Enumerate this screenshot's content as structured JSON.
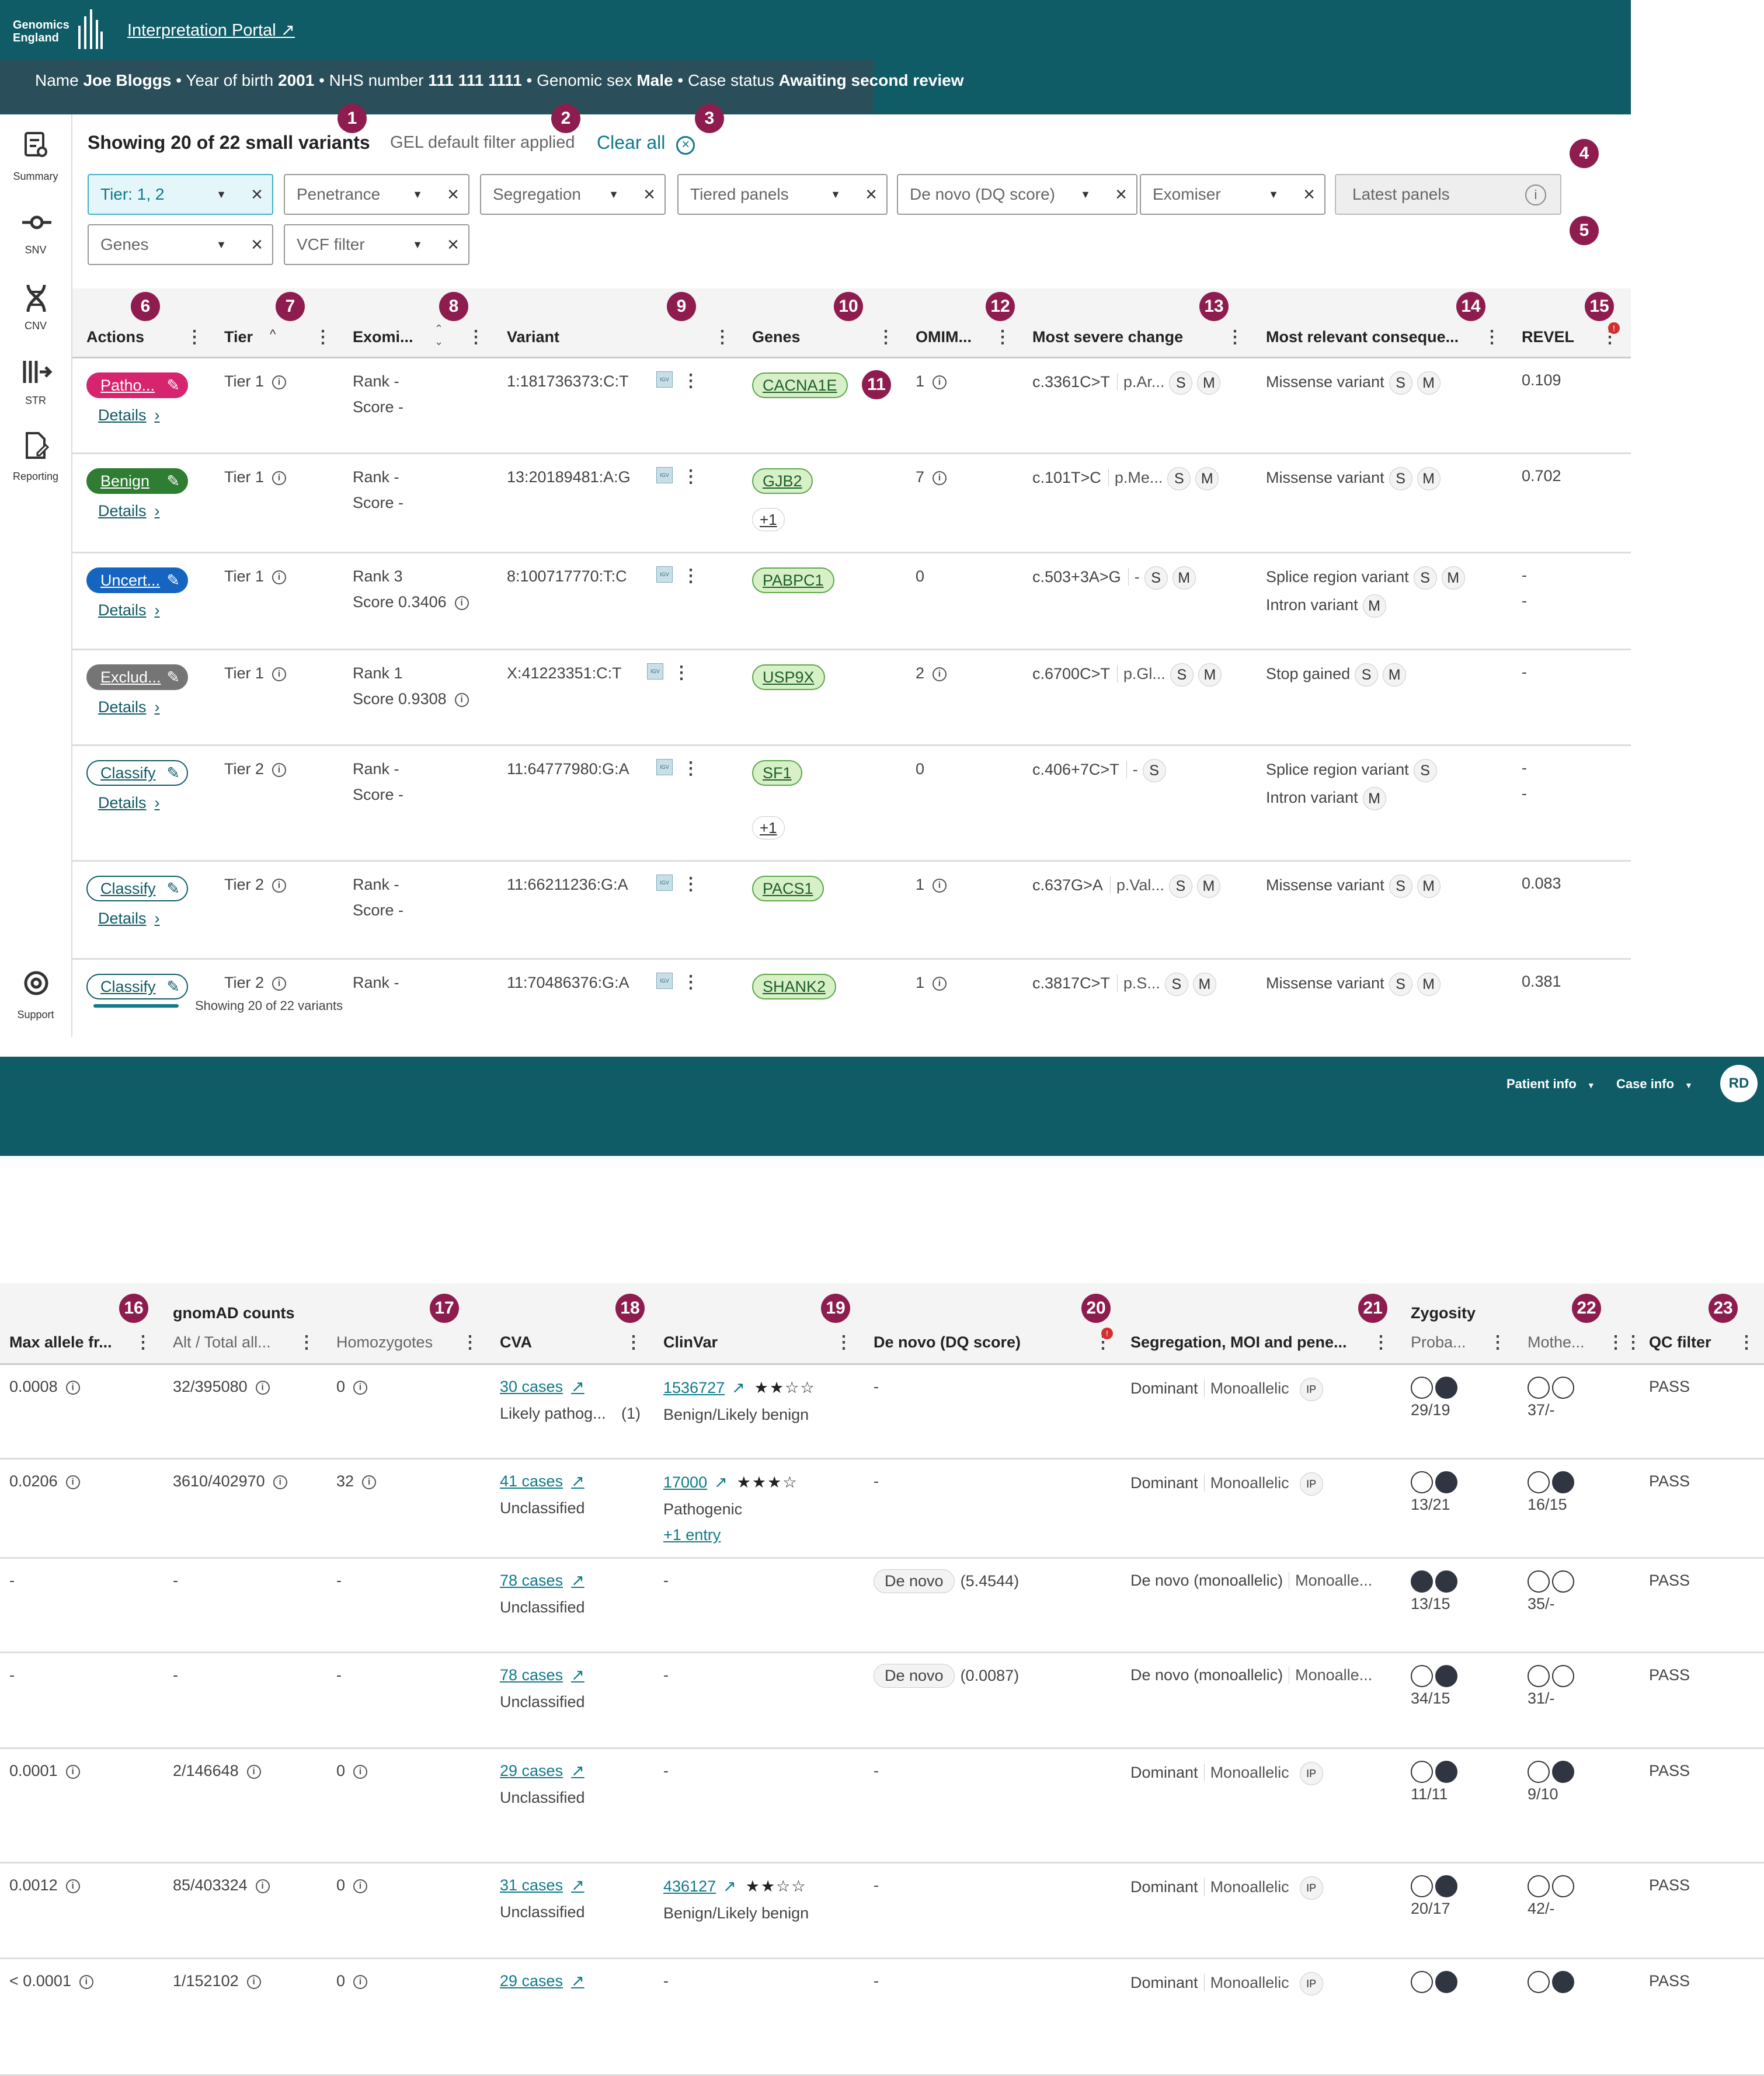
{
  "header": {
    "logo_text": "Genomics England",
    "portal_link": "Interpretation Portal",
    "patient": {
      "name_label": "Name",
      "name": "Joe Bloggs",
      "yob_label": "Year of birth",
      "yob": "2001",
      "nhs_label": "NHS number",
      "nhs": "111 111 1111",
      "sex_label": "Genomic sex",
      "sex": "Male",
      "status_label": "Case status",
      "status": "Awaiting second review"
    }
  },
  "sidebar": {
    "items": [
      {
        "label": "Summary",
        "icon": "summary-icon"
      },
      {
        "label": "SNV",
        "icon": "snv-icon"
      },
      {
        "label": "CNV",
        "icon": "cnv-icon"
      },
      {
        "label": "STR",
        "icon": "str-icon"
      },
      {
        "label": "Reporting",
        "icon": "reporting-icon"
      }
    ],
    "support": "Support"
  },
  "toolbar": {
    "showing": "Showing 20 of 22 small variants",
    "filter_note": "GEL default filter applied",
    "clear_all": "Clear all"
  },
  "filters": [
    "Tier: 1, 2",
    "Penetrance",
    "Segregation",
    "Tiered panels",
    "De novo (DQ score)",
    "Exomiser",
    "Latest panels",
    "Genes",
    "VCF filter"
  ],
  "badges": [
    "1",
    "2",
    "3",
    "4",
    "5",
    "6",
    "7",
    "8",
    "9",
    "10",
    "11",
    "12",
    "13",
    "14",
    "15",
    "16",
    "17",
    "18",
    "19",
    "20",
    "21",
    "22",
    "23"
  ],
  "columns1": [
    "Actions",
    "Tier",
    "Exomi...",
    "Variant",
    "Genes",
    "OMIM...",
    "Most severe change",
    "Most relevant conseque...",
    "REVEL"
  ],
  "rows1": [
    {
      "action": "Patho...",
      "details": "Details",
      "tier": "Tier 1",
      "rank": "Rank -",
      "score": "Score -",
      "variant": "1:181736373:C:T",
      "gene": "CACNA1E",
      "omim": "1",
      "change": "c.3361C>T",
      "protein": "p.Ar...",
      "csq": [
        "Missense variant"
      ],
      "revel": "0.109"
    },
    {
      "action": "Benign",
      "details": "Details",
      "tier": "Tier 1",
      "rank": "Rank -",
      "score": "Score -",
      "variant": "13:20189481:A:G",
      "gene": "GJB2",
      "more": "+1",
      "omim": "7",
      "change": "c.101T>C",
      "protein": "p.Me...",
      "csq": [
        "Missense variant"
      ],
      "revel": "0.702"
    },
    {
      "action": "Uncert...",
      "details": "Details",
      "tier": "Tier 1",
      "rank": "Rank 3",
      "score": "Score 0.3406",
      "variant": "8:100717770:T:C",
      "gene": "PABPC1",
      "omim": "0",
      "change": "c.503+3A>G",
      "protein": "-",
      "csq": [
        "Splice region variant",
        "Intron variant"
      ],
      "revel": "-",
      "revel2": "-"
    },
    {
      "action": "Exclud...",
      "details": "Details",
      "tier": "Tier 1",
      "rank": "Rank 1",
      "score": "Score 0.9308",
      "variant": "X:41223351:C:T",
      "gene": "USP9X",
      "omim": "2",
      "change": "c.6700C>T",
      "protein": "p.Gl...",
      "csq": [
        "Stop gained"
      ],
      "revel": "-"
    },
    {
      "action": "Classify",
      "details": "Details",
      "tier": "Tier 2",
      "rank": "Rank -",
      "score": "Score -",
      "variant": "11:64777980:G:A",
      "gene": "SF1",
      "more": "+1",
      "omim": "0",
      "change": "c.406+7C>T",
      "protein": "-",
      "csq": [
        "Splice region variant",
        "Intron variant"
      ],
      "revel": "-",
      "revel2": "-"
    },
    {
      "action": "Classify",
      "details": "Details",
      "tier": "Tier 2",
      "rank": "Rank -",
      "score": "Score -",
      "variant": "11:66211236:G:A",
      "gene": "PACS1",
      "omim": "1",
      "change": "c.637G>A",
      "protein": "p.Val...",
      "csq": [
        "Missense variant"
      ],
      "revel": "0.083"
    },
    {
      "action": "Classify",
      "tier": "Tier 2",
      "rank": "Rank -",
      "variant": "11:70486376:G:A",
      "gene": "SHANK2",
      "omim": "1",
      "change": "c.3817C>T",
      "protein": "p.S...",
      "csq": [
        "Missense variant"
      ],
      "revel": "0.381"
    }
  ],
  "footer1": "Showing 20 of 22 variants",
  "topnav": {
    "patient_info": "Patient info",
    "case_info": "Case info",
    "avatar": "RD"
  },
  "groups2": {
    "gnomad": "gnomAD counts",
    "zygosity": "Zygosity"
  },
  "columns2": [
    "Max allele fr...",
    "Alt / Total all...",
    "Homozygotes",
    "CVA",
    "ClinVar",
    "De novo (DQ score)",
    "Segregation, MOI and pene...",
    "Proba...",
    "Mothe...",
    "QC filter"
  ],
  "rows2": [
    {
      "maf": "0.0008",
      "alt": "32/395080",
      "hom": "0",
      "cva": "30 cases",
      "cva_sub": "Likely pathog...",
      "cva_n": "(1)",
      "clinvar": "1536727",
      "stars": 2,
      "clinvar_sub": "Benign/Likely benign",
      "denovo": "-",
      "seg": "Dominant",
      "moi": "Monoallelic",
      "ip": "IP",
      "proband": "29/19",
      "pf": [
        0,
        1
      ],
      "mother": "37/-",
      "mf": [
        0,
        0
      ],
      "qc": "PASS"
    },
    {
      "maf": "0.0206",
      "alt": "3610/402970",
      "hom": "32",
      "cva": "41 cases",
      "cva_sub": "Unclassified",
      "clinvar": "17000",
      "stars": 3,
      "clinvar_sub": "Pathogenic",
      "clinvar_more": "+1 entry",
      "denovo": "-",
      "seg": "Dominant",
      "moi": "Monoallelic",
      "ip": "IP",
      "proband": "13/21",
      "pf": [
        0,
        1
      ],
      "mother": "16/15",
      "mf": [
        0,
        1
      ],
      "qc": "PASS"
    },
    {
      "maf": "-",
      "alt": "-",
      "hom": "-",
      "cva": "78 cases",
      "cva_sub": "Unclassified",
      "clinvar": "-",
      "denovo_tag": "De novo",
      "denovo": "(5.4544)",
      "seg": "De novo (monoallelic)",
      "moi": "Monoalle...",
      "proband": "13/15",
      "pf": [
        1,
        1
      ],
      "mother": "35/-",
      "mf": [
        0,
        0
      ],
      "qc": "PASS"
    },
    {
      "maf": "-",
      "alt": "-",
      "hom": "-",
      "cva": "78 cases",
      "cva_sub": "Unclassified",
      "clinvar": "-",
      "denovo_tag": "De novo",
      "denovo": "(0.0087)",
      "seg": "De novo (monoallelic)",
      "moi": "Monoalle...",
      "proband": "34/15",
      "pf": [
        0,
        1
      ],
      "mother": "31/-",
      "mf": [
        0,
        0
      ],
      "qc": "PASS"
    },
    {
      "maf": "0.0001",
      "alt": "2/146648",
      "hom": "0",
      "cva": "29 cases",
      "cva_sub": "Unclassified",
      "clinvar": "-",
      "denovo": "-",
      "seg": "Dominant",
      "moi": "Monoallelic",
      "ip": "IP",
      "proband": "11/11",
      "pf": [
        0,
        1
      ],
      "mother": "9/10",
      "mf": [
        0,
        1
      ],
      "qc": "PASS"
    },
    {
      "maf": "0.0012",
      "alt": "85/403324",
      "hom": "0",
      "cva": "31 cases",
      "cva_sub": "Unclassified",
      "clinvar": "436127",
      "stars": 2,
      "clinvar_sub": "Benign/Likely benign",
      "denovo": "-",
      "seg": "Dominant",
      "moi": "Monoallelic",
      "ip": "IP",
      "proband": "20/17",
      "pf": [
        0,
        1
      ],
      "mother": "42/-",
      "mf": [
        0,
        0
      ],
      "qc": "PASS"
    },
    {
      "maf": "< 0.0001",
      "alt": "1/152102",
      "hom": "0",
      "cva": "29 cases",
      "clinvar": "-",
      "denovo": "-",
      "seg": "Dominant",
      "moi": "Monoallelic",
      "ip": "IP",
      "proband": "",
      "pf": [
        0,
        1
      ],
      "mother": "",
      "mf": [
        0,
        1
      ],
      "qc": "PASS"
    }
  ],
  "colors": {
    "teal": "#0f5b66",
    "badge": "#8e1c4e",
    "pathogenic": "#d6246e",
    "benign": "#2e7d32",
    "uncertain": "#1565c0",
    "excluded": "#757575"
  }
}
